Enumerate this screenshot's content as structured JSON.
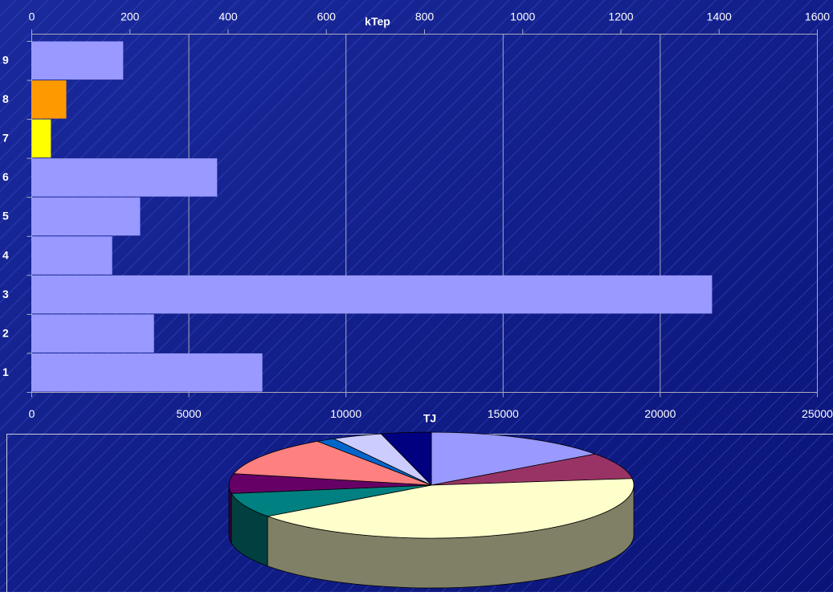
{
  "chart_data": [
    {
      "type": "bar",
      "orientation": "horizontal",
      "categories": [
        "1",
        "2",
        "3",
        "4",
        "5",
        "6",
        "7",
        "8",
        "9"
      ],
      "values": [
        7340,
        3890,
        21650,
        2560,
        3450,
        5900,
        610,
        1100,
        2910
      ],
      "colors": [
        "#9999ff",
        "#9999ff",
        "#9999ff",
        "#9999ff",
        "#9999ff",
        "#9999ff",
        "#ffff00",
        "#ff9900",
        "#9999ff"
      ],
      "xlabel": "TJ",
      "xlim": [
        0,
        25000
      ],
      "xticks": [
        0,
        5000,
        10000,
        15000,
        20000,
        25000
      ],
      "x2label": "kTep",
      "x2lim": [
        0,
        1600
      ],
      "x2ticks": [
        0,
        200,
        400,
        600,
        800,
        1000,
        1200,
        1400,
        1600
      ],
      "grid": true
    },
    {
      "type": "pie",
      "values": [
        15,
        8,
        42,
        7.5,
        6,
        12,
        1.5,
        4,
        4
      ],
      "colors": [
        "#9999ff",
        "#993366",
        "#ffffcc",
        "#008080",
        "#660066",
        "#ff8080",
        "#0066cc",
        "#ccccff",
        "#000080"
      ],
      "side_colors": [
        "#4d4d80",
        "#4d1a33",
        "#808066",
        "#004040",
        "#330033",
        "#804040",
        "#003366",
        "#666680",
        "#000040"
      ]
    }
  ]
}
